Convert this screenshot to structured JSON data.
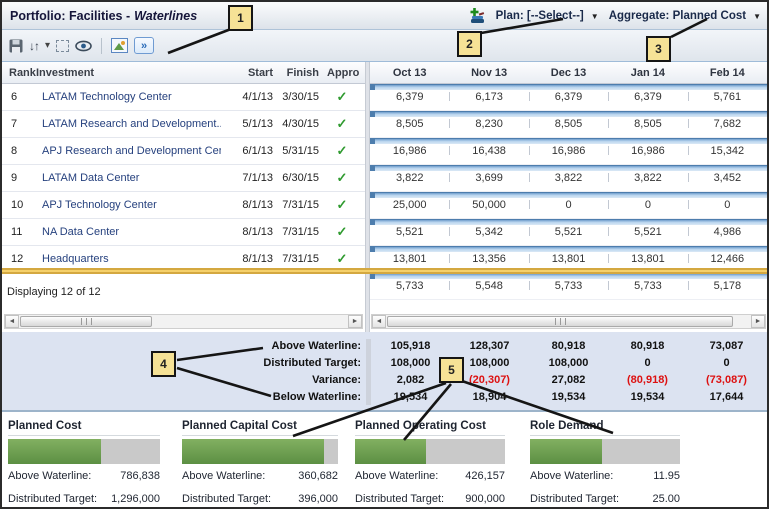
{
  "window": {
    "title_prefix": "Portfolio: Facilities -",
    "title_emphasis": "Waterlines"
  },
  "header_controls": {
    "plan_dropdown": "Plan: [--Select--]",
    "aggregate_dropdown": "Aggregate: Planned Cost",
    "plan_icon": "add-plan-icon"
  },
  "toolbar": {
    "icons": [
      "save-icon",
      "sort-icon",
      "dropdown-arrow-icon",
      "select-region-icon",
      "view-icon",
      "image-export-icon",
      "expand-icon"
    ]
  },
  "callouts": [
    "1",
    "2",
    "3",
    "4",
    "5"
  ],
  "investments": {
    "columns": [
      "Rank",
      "Investment",
      "Start",
      "Finish",
      "Appro"
    ],
    "rows": [
      {
        "rank": "6",
        "name": "LATAM Technology Center",
        "start": "4/1/13",
        "finish": "3/30/15",
        "approved": "✓"
      },
      {
        "rank": "7",
        "name": "LATAM Research and Development...",
        "start": "5/1/13",
        "finish": "4/30/15",
        "approved": "✓"
      },
      {
        "rank": "8",
        "name": "APJ Research and Development Center",
        "start": "6/1/13",
        "finish": "5/31/15",
        "approved": "✓"
      },
      {
        "rank": "9",
        "name": "LATAM Data Center",
        "start": "7/1/13",
        "finish": "6/30/15",
        "approved": "✓"
      },
      {
        "rank": "10",
        "name": "APJ Technology Center",
        "start": "8/1/13",
        "finish": "7/31/15",
        "approved": "✓"
      },
      {
        "rank": "11",
        "name": "NA Data Center",
        "start": "8/1/13",
        "finish": "7/31/15",
        "approved": "✓"
      },
      {
        "rank": "12",
        "name": "Headquarters",
        "start": "8/1/13",
        "finish": "7/31/15",
        "approved": "✓"
      }
    ],
    "footer": "Displaying 12 of 12"
  },
  "timeline": {
    "months": [
      "Oct 13",
      "Nov 13",
      "Dec 13",
      "Jan 14",
      "Feb 14"
    ],
    "rows": [
      [
        "6,379",
        "6,173",
        "6,379",
        "6,379",
        "5,761"
      ],
      [
        "8,505",
        "8,230",
        "8,505",
        "8,505",
        "7,682"
      ],
      [
        "16,986",
        "16,438",
        "16,986",
        "16,986",
        "15,342"
      ],
      [
        "3,822",
        "3,699",
        "3,822",
        "3,822",
        "3,452"
      ],
      [
        "25,000",
        "50,000",
        "0",
        "0",
        "0"
      ],
      [
        "5,521",
        "5,342",
        "5,521",
        "5,521",
        "4,986"
      ],
      [
        "13,801",
        "13,356",
        "13,801",
        "13,801",
        "12,466"
      ],
      [
        "5,733",
        "5,548",
        "5,733",
        "5,733",
        "5,178"
      ]
    ],
    "waterline_after_row": 5
  },
  "summary": {
    "rows": [
      {
        "label": "Above Waterline:",
        "values": [
          "105,918",
          "128,307",
          "80,918",
          "80,918",
          "73,087"
        ]
      },
      {
        "label": "Distributed Target:",
        "values": [
          "108,000",
          "108,000",
          "108,000",
          "0",
          "0"
        ]
      },
      {
        "label": "Variance:",
        "values": [
          "2,082",
          "(20,307)",
          "27,082",
          "(80,918)",
          "(73,087)"
        ]
      },
      {
        "label": "Below Waterline:",
        "values": [
          "19,534",
          "18,904",
          "19,534",
          "19,534",
          "17,644"
        ]
      }
    ]
  },
  "metrics": [
    {
      "title": "Planned Cost",
      "above_label": "Above Waterline:",
      "above_value": "786,838",
      "target_label": "Distributed Target:",
      "target_value": "1,296,000",
      "fill_pct": 61
    },
    {
      "title": "Planned Capital Cost",
      "above_label": "Above Waterline:",
      "above_value": "360,682",
      "target_label": "Distributed Target:",
      "target_value": "396,000",
      "fill_pct": 91
    },
    {
      "title": "Planned Operating Cost",
      "above_label": "Above Waterline:",
      "above_value": "426,157",
      "target_label": "Distributed Target:",
      "target_value": "900,000",
      "fill_pct": 47
    },
    {
      "title": "Role Demand",
      "above_label": "Above Waterline:",
      "above_value": "11.95",
      "target_label": "Distributed Target:",
      "target_value": "25.00",
      "fill_pct": 48
    }
  ],
  "colors": {
    "waterline_gold": "#F5D06A",
    "timeline_bar_blue": "#B9D4EE",
    "negative_red": "#DD1111",
    "investment_link_navy": "#26417E",
    "metric_green": "#5C8F43",
    "callout_yellow": "#F6E296",
    "approved_check_green": "#2F9A2F"
  }
}
